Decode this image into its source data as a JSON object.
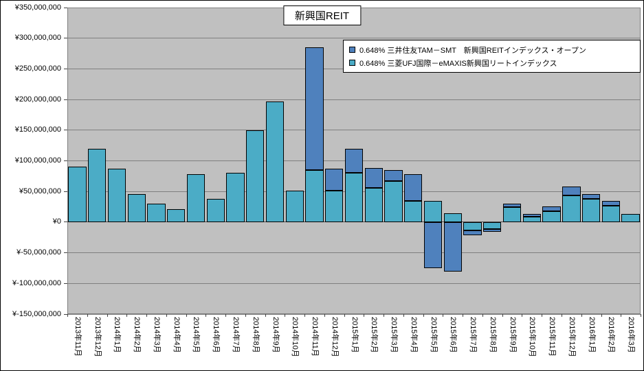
{
  "chart_data": {
    "type": "bar",
    "stacked": true,
    "title": "新興国REIT",
    "xlabel": "",
    "ylabel": "",
    "categories": [
      "2013年11月",
      "2013年12月",
      "2014年1月",
      "2014年2月",
      "2014年3月",
      "2014年4月",
      "2014年5月",
      "2014年6月",
      "2014年7月",
      "2014年8月",
      "2014年9月",
      "2014年10月",
      "2014年11月",
      "2014年12月",
      "2015年1月",
      "2015年2月",
      "2015年3月",
      "2015年4月",
      "2015年5月",
      "2015年6月",
      "2015年7月",
      "2015年8月",
      "2015年9月",
      "2015年10月",
      "2015年11月",
      "2015年12月",
      "2016年1月",
      "2016年2月",
      "2016年3月"
    ],
    "series": [
      {
        "name": "0.648% 三井住友TAM－SMT　新興国REITインデックス・オープン",
        "color": "#4f81bd",
        "values": [
          0,
          0,
          0,
          0,
          0,
          0,
          0,
          0,
          0,
          0,
          0,
          0,
          200000000,
          36000000,
          40000000,
          32000000,
          18000000,
          43000000,
          -75000000,
          -81000000,
          -7000000,
          -5000000,
          6000000,
          4000000,
          8000000,
          14000000,
          8000000,
          8000000,
          0
        ]
      },
      {
        "name": "0.648% 三菱UFJ国際－eMAXIS新興国リートインデックス",
        "color": "#4bacc6",
        "values": [
          90000000,
          120000000,
          87000000,
          46000000,
          30000000,
          21000000,
          78000000,
          38000000,
          80000000,
          150000000,
          197000000,
          51000000,
          85000000,
          51000000,
          80000000,
          56000000,
          67000000,
          35000000,
          35000000,
          15000000,
          -14000000,
          -11000000,
          24000000,
          9000000,
          18000000,
          44000000,
          38000000,
          27000000,
          13000000
        ]
      }
    ],
    "stack_order": [
      1,
      0
    ],
    "ylim": [
      -150000000,
      350000000
    ],
    "ytick_step": 50000000,
    "ytick_labels": [
      "¥350,000,000",
      "¥300,000,000",
      "¥250,000,000",
      "¥200,000,000",
      "¥150,000,000",
      "¥100,000,000",
      "¥50,000,000",
      "¥0",
      "¥-50,000,000",
      "¥-100,000,000",
      "¥-150,000,000"
    ],
    "grid": true,
    "legend_position": "top-right",
    "plot_background": "#c0c0c0",
    "currency": "JPY"
  }
}
